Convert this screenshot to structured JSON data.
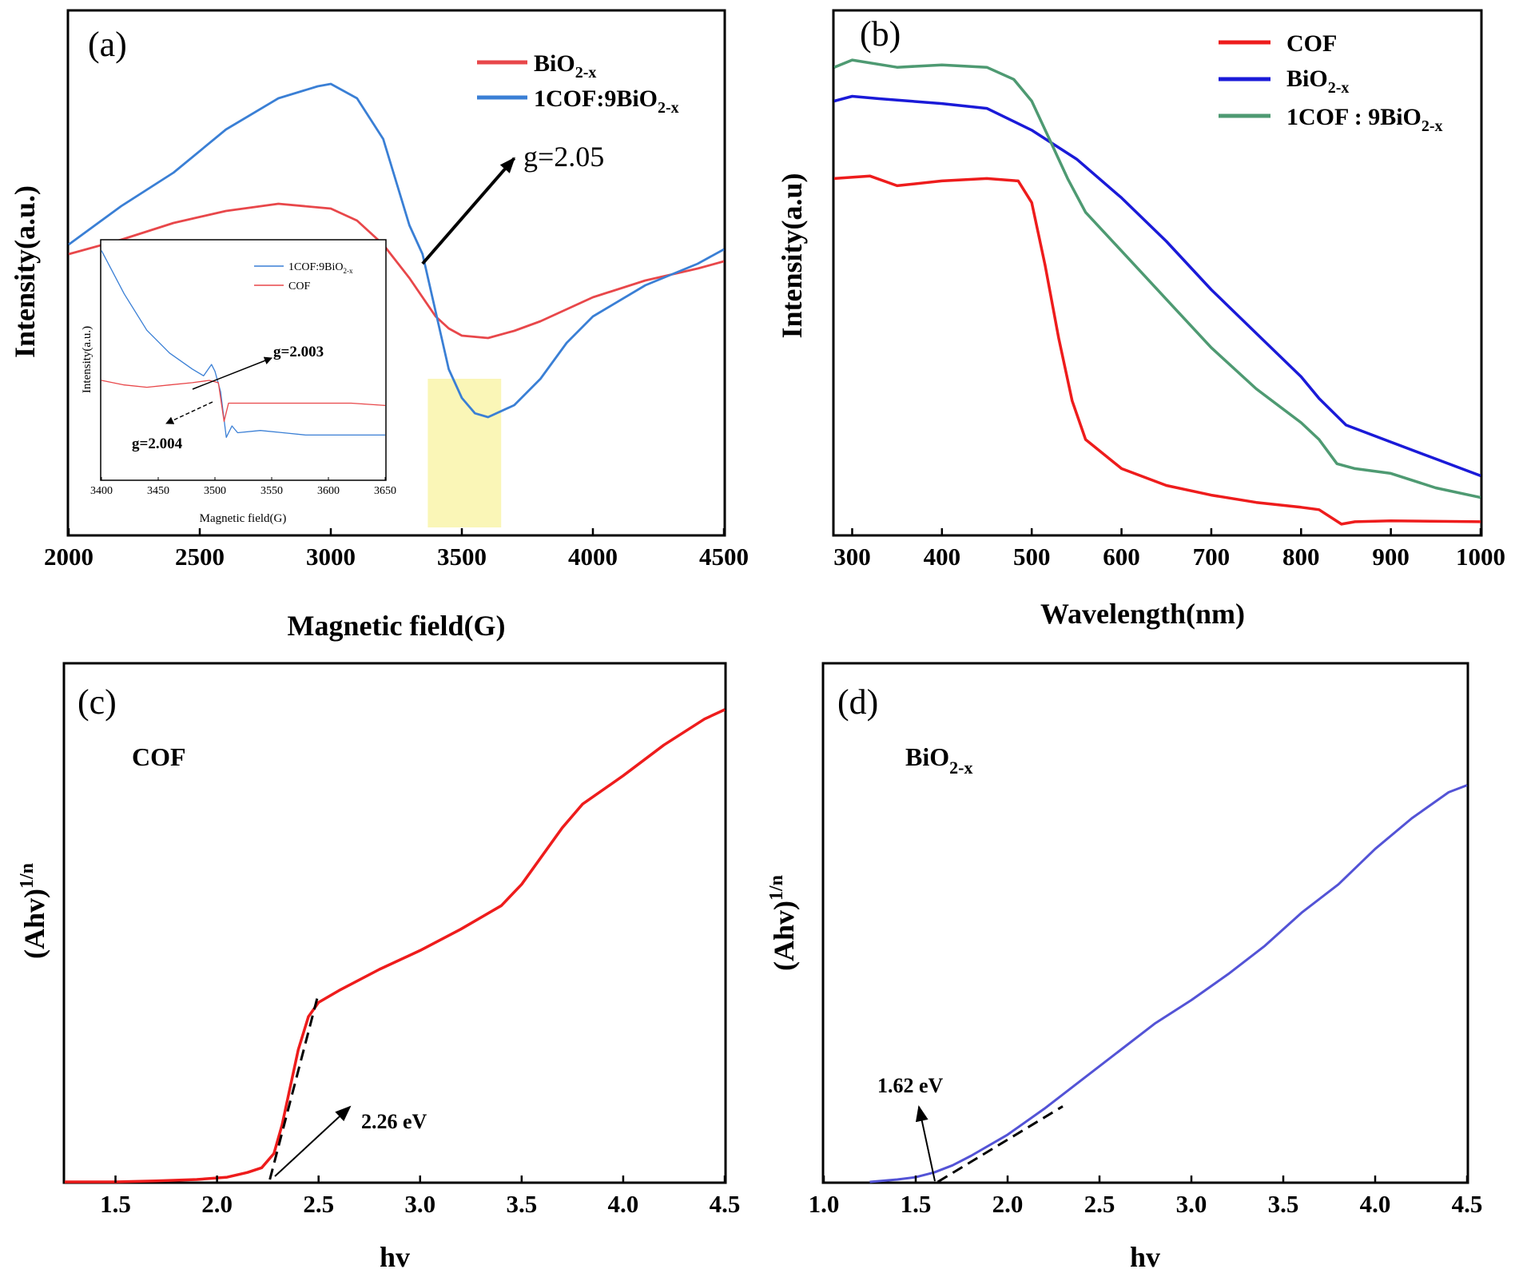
{
  "chart_data": [
    {
      "panel_label": "(a)",
      "type": "line",
      "xlabel": "Magnetic field(G)",
      "ylabel": "Intensity(a.u.)",
      "xlim": [
        2000,
        4500
      ],
      "ylim": [
        0,
        100
      ],
      "xticks": [
        2000,
        2500,
        3000,
        3500,
        4000,
        4500
      ],
      "y_ticks_shown": false,
      "legend_position": "top-right",
      "series": [
        {
          "name": "BiO2-x",
          "color": "#e8474a",
          "points": [
            [
              2000,
              57
            ],
            [
              2200,
              60
            ],
            [
              2400,
              63.5
            ],
            [
              2600,
              66
            ],
            [
              2800,
              67.5
            ],
            [
              3000,
              66.5
            ],
            [
              3100,
              64
            ],
            [
              3200,
              59
            ],
            [
              3300,
              52
            ],
            [
              3400,
              44
            ],
            [
              3450,
              41.5
            ],
            [
              3500,
              40
            ],
            [
              3600,
              39.5
            ],
            [
              3700,
              41
            ],
            [
              3800,
              43
            ],
            [
              3900,
              45.5
            ],
            [
              4000,
              48
            ],
            [
              4200,
              51.5
            ],
            [
              4400,
              54
            ],
            [
              4500,
              55.5
            ]
          ]
        },
        {
          "name": "1COF:9BiO2-x",
          "color": "#3a7fd5",
          "points": [
            [
              2000,
              59
            ],
            [
              2200,
              67
            ],
            [
              2400,
              74
            ],
            [
              2600,
              83
            ],
            [
              2800,
              89.5
            ],
            [
              2950,
              92
            ],
            [
              3000,
              92.5
            ],
            [
              3100,
              89.5
            ],
            [
              3200,
              81
            ],
            [
              3300,
              63
            ],
            [
              3350,
              57
            ],
            [
              3400,
              45
            ],
            [
              3450,
              33
            ],
            [
              3500,
              27
            ],
            [
              3550,
              23.8
            ],
            [
              3600,
              23
            ],
            [
              3700,
              25.5
            ],
            [
              3800,
              31
            ],
            [
              3900,
              38.5
            ],
            [
              4000,
              44
            ],
            [
              4200,
              50.5
            ],
            [
              4400,
              55
            ],
            [
              4500,
              58
            ]
          ]
        }
      ],
      "annotations": [
        {
          "text": "g=2.05",
          "type": "arrow",
          "from_x": 3350,
          "from_y": 55,
          "to_x": 3700,
          "to_y": 77
        }
      ],
      "highlight": {
        "x_range": [
          3370,
          3650
        ],
        "y_range": [
          0,
          31
        ],
        "color": "#faf6b7"
      },
      "inset": {
        "type": "line",
        "xlabel": "Magnetic field(G)",
        "ylabel": "Intensity(a.u.)",
        "xlim": [
          3400,
          3650
        ],
        "ylim": [
          0,
          100
        ],
        "xticks": [
          3400,
          3450,
          3500,
          3550,
          3600,
          3650
        ],
        "series": [
          {
            "name": "1COF:9BiO2-x",
            "color": "#3a7fd5",
            "points": [
              [
                3400,
                97
              ],
              [
                3420,
                78
              ],
              [
                3440,
                62
              ],
              [
                3460,
                52
              ],
              [
                3480,
                45
              ],
              [
                3490,
                42
              ],
              [
                3497,
                47
              ],
              [
                3500,
                44
              ],
              [
                3505,
                35
              ],
              [
                3510,
                15
              ],
              [
                3515,
                20
              ],
              [
                3520,
                17
              ],
              [
                3540,
                18
              ],
              [
                3560,
                17
              ],
              [
                3580,
                16
              ],
              [
                3600,
                16
              ],
              [
                3620,
                16
              ],
              [
                3650,
                16
              ]
            ]
          },
          {
            "name": "COF",
            "color": "#e8474a",
            "points": [
              [
                3400,
                40
              ],
              [
                3420,
                38
              ],
              [
                3440,
                37
              ],
              [
                3460,
                38
              ],
              [
                3480,
                39
              ],
              [
                3495,
                40
              ],
              [
                3503,
                39
              ],
              [
                3508,
                22
              ],
              [
                3512,
                30
              ],
              [
                3520,
                30
              ],
              [
                3540,
                30
              ],
              [
                3560,
                30
              ],
              [
                3580,
                30
              ],
              [
                3600,
                30
              ],
              [
                3620,
                30
              ],
              [
                3650,
                29
              ]
            ]
          }
        ],
        "annotations": [
          {
            "text": "g=2.003"
          },
          {
            "text": "g=2.004"
          }
        ]
      }
    },
    {
      "panel_label": "(b)",
      "type": "line",
      "xlabel": "Wavelength(nm)",
      "ylabel": "Intensity(a.u)",
      "xlim": [
        280,
        1000
      ],
      "ylim": [
        0,
        100
      ],
      "xticks": [
        300,
        400,
        500,
        600,
        700,
        800,
        900,
        1000
      ],
      "y_ticks_shown": false,
      "legend_position": "top-right",
      "series": [
        {
          "name": "COF",
          "color": "#ee1c1c",
          "points": [
            [
              280,
              73
            ],
            [
              320,
              73.5
            ],
            [
              350,
              71.5
            ],
            [
              400,
              72.5
            ],
            [
              450,
              73
            ],
            [
              485,
              72.5
            ],
            [
              500,
              68
            ],
            [
              515,
              55
            ],
            [
              530,
              40
            ],
            [
              545,
              27
            ],
            [
              560,
              19
            ],
            [
              600,
              13
            ],
            [
              650,
              9.5
            ],
            [
              700,
              7.5
            ],
            [
              750,
              6
            ],
            [
              800,
              5
            ],
            [
              820,
              4.5
            ],
            [
              845,
              1.5
            ],
            [
              860,
              2
            ],
            [
              900,
              2.2
            ],
            [
              1000,
              2
            ]
          ]
        },
        {
          "name": "BiO2-x",
          "color": "#1a1ad8",
          "points": [
            [
              280,
              89
            ],
            [
              300,
              90
            ],
            [
              330,
              89.5
            ],
            [
              400,
              88.5
            ],
            [
              450,
              87.5
            ],
            [
              500,
              83
            ],
            [
              550,
              77
            ],
            [
              600,
              69
            ],
            [
              650,
              60
            ],
            [
              700,
              50
            ],
            [
              750,
              41
            ],
            [
              800,
              32
            ],
            [
              820,
              27.5
            ],
            [
              850,
              22
            ],
            [
              900,
              18.5
            ],
            [
              950,
              15
            ],
            [
              1000,
              11.5
            ]
          ]
        },
        {
          "name": "1COF:9BiO2-x",
          "color": "#4e9a72",
          "points": [
            [
              280,
              96
            ],
            [
              300,
              97.5
            ],
            [
              350,
              96
            ],
            [
              400,
              96.5
            ],
            [
              450,
              96
            ],
            [
              480,
              93.5
            ],
            [
              500,
              89
            ],
            [
              520,
              81
            ],
            [
              540,
              73
            ],
            [
              560,
              66
            ],
            [
              600,
              58
            ],
            [
              650,
              48
            ],
            [
              700,
              38
            ],
            [
              750,
              29.5
            ],
            [
              800,
              22.5
            ],
            [
              820,
              19
            ],
            [
              840,
              14
            ],
            [
              860,
              13
            ],
            [
              900,
              12
            ],
            [
              950,
              9
            ],
            [
              1000,
              7
            ]
          ]
        }
      ]
    },
    {
      "panel_label": "(c)",
      "type": "line",
      "title": "COF",
      "xlabel": "hv",
      "ylabel": "(Ahv)1/n",
      "xlim": [
        1.25,
        4.5
      ],
      "ylim": [
        0,
        100
      ],
      "xticks": [
        1.5,
        2.0,
        2.5,
        3.0,
        3.5,
        4.0,
        4.5
      ],
      "y_ticks_shown": false,
      "series": [
        {
          "name": "COF",
          "color": "#ee1c1c",
          "points": [
            [
              1.25,
              0
            ],
            [
              1.5,
              0
            ],
            [
              1.7,
              0.2
            ],
            [
              1.9,
              0.5
            ],
            [
              2.05,
              1
            ],
            [
              2.15,
              2
            ],
            [
              2.22,
              3
            ],
            [
              2.28,
              6
            ],
            [
              2.32,
              12
            ],
            [
              2.36,
              20
            ],
            [
              2.4,
              28
            ],
            [
              2.45,
              35
            ],
            [
              2.5,
              38
            ],
            [
              2.6,
              40.5
            ],
            [
              2.8,
              45
            ],
            [
              3.0,
              49
            ],
            [
              3.2,
              53.5
            ],
            [
              3.4,
              58.5
            ],
            [
              3.5,
              63
            ],
            [
              3.6,
              69
            ],
            [
              3.7,
              75
            ],
            [
              3.8,
              80
            ],
            [
              4.0,
              86
            ],
            [
              4.2,
              92.5
            ],
            [
              4.4,
              98
            ],
            [
              4.5,
              100
            ]
          ]
        }
      ],
      "tangent": {
        "from": [
          2.26,
          0.5
        ],
        "to": [
          2.5,
          40
        ]
      },
      "annotations": [
        {
          "text": "2.26 eV"
        }
      ]
    },
    {
      "panel_label": "(d)",
      "type": "line",
      "title": "BiO2-x",
      "xlabel": "hv",
      "ylabel": "(Ahv)1/n",
      "xlim": [
        1.0,
        4.5
      ],
      "ylim": [
        0,
        100
      ],
      "xticks": [
        1.0,
        1.5,
        2.0,
        2.5,
        3.0,
        3.5,
        4.0,
        4.5
      ],
      "y_ticks_shown": false,
      "series": [
        {
          "name": "BiO2-x",
          "color": "#5353d6",
          "points": [
            [
              1.25,
              0
            ],
            [
              1.4,
              0.5
            ],
            [
              1.5,
              1
            ],
            [
              1.6,
              2
            ],
            [
              1.7,
              3.5
            ],
            [
              1.8,
              5.5
            ],
            [
              2.0,
              10
            ],
            [
              2.2,
              15.5
            ],
            [
              2.4,
              21.5
            ],
            [
              2.6,
              27.5
            ],
            [
              2.8,
              33.5
            ],
            [
              3.0,
              38.5
            ],
            [
              3.2,
              44
            ],
            [
              3.4,
              50
            ],
            [
              3.6,
              57
            ],
            [
              3.8,
              63
            ],
            [
              4.0,
              70.5
            ],
            [
              4.2,
              77
            ],
            [
              4.4,
              82.5
            ],
            [
              4.5,
              84
            ]
          ]
        }
      ],
      "tangent": {
        "from": [
          1.62,
          0
        ],
        "to": [
          2.3,
          16
        ]
      },
      "annotations": [
        {
          "text": "1.62 eV"
        }
      ]
    }
  ]
}
